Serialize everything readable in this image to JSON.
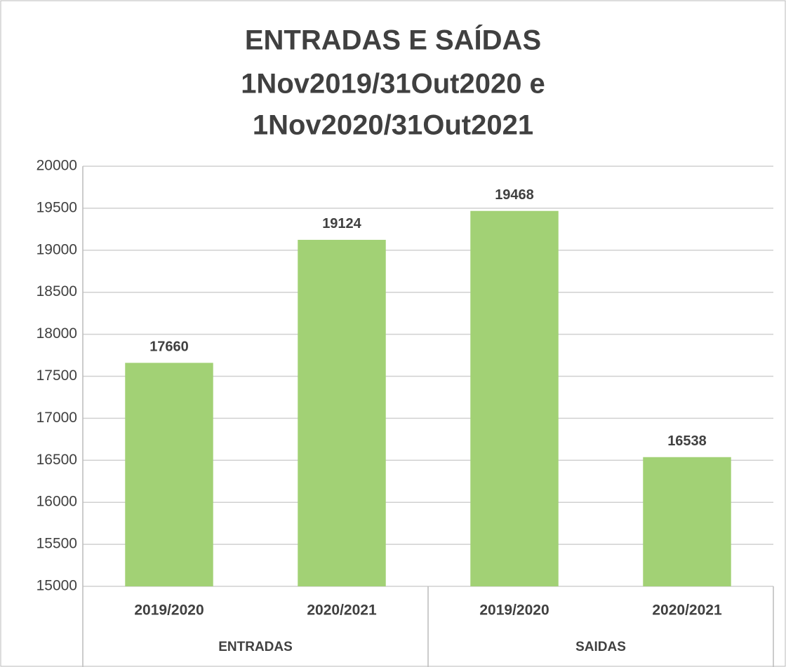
{
  "chart_data": {
    "type": "bar",
    "title": [
      "ENTRADAS E SAÍDAS",
      "1Nov2019/31Out2020 e",
      "1Nov2020/31Out2021"
    ],
    "groups": [
      {
        "name": "ENTRADAS",
        "categories": [
          "2019/2020",
          "2020/2021"
        ],
        "values": [
          17660,
          19124
        ]
      },
      {
        "name": "SAIDAS",
        "categories": [
          "2019/2020",
          "2020/2021"
        ],
        "values": [
          19468,
          16538
        ]
      }
    ],
    "color": "#a2d175",
    "ylim": [
      15000,
      20000
    ],
    "yticks": [
      15000,
      15500,
      16000,
      16500,
      17000,
      17500,
      18000,
      18500,
      19000,
      19500,
      20000
    ],
    "grid": true
  }
}
